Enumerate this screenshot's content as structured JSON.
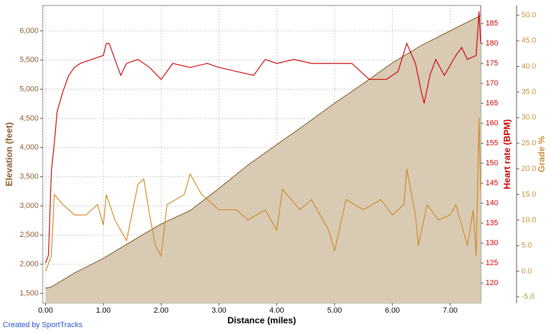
{
  "chart_data": {
    "type": "line",
    "xlabel": "Distance (miles)",
    "ylabel": "Elevation (feet)",
    "y2label": "Heart rate (BPM)",
    "y3label": "Grade %",
    "credit": "Created by SportTracks",
    "grid": true,
    "xlim": [
      -0.05,
      7.53
    ],
    "xticks": [
      {
        "value": 0,
        "label": "0.00"
      },
      {
        "value": 1,
        "label": "1.00"
      },
      {
        "value": 2,
        "label": "2.00"
      },
      {
        "value": 3,
        "label": "3.00"
      },
      {
        "value": 4,
        "label": "4.00"
      },
      {
        "value": 5,
        "label": "5.00"
      },
      {
        "value": 6,
        "label": "6.00"
      },
      {
        "value": 7,
        "label": "7.00"
      }
    ],
    "ylim": [
      1335,
      6435
    ],
    "yticks": [
      {
        "value": 1500,
        "label": "1,500"
      },
      {
        "value": 2000,
        "label": "2,000"
      },
      {
        "value": 2500,
        "label": "2,500"
      },
      {
        "value": 3000,
        "label": "3,000"
      },
      {
        "value": 3500,
        "label": "3,500"
      },
      {
        "value": 4000,
        "label": "4,000"
      },
      {
        "value": 4500,
        "label": "4,500"
      },
      {
        "value": 5000,
        "label": "5,000"
      },
      {
        "value": 5500,
        "label": "5,500"
      },
      {
        "value": 6000,
        "label": "6,000"
      }
    ],
    "y2lim": [
      115,
      189.5
    ],
    "y2ticks": [
      120,
      125,
      130,
      135,
      140,
      145,
      150,
      155,
      160,
      165,
      170,
      175,
      180,
      185
    ],
    "y3lim": [
      -6.2,
      51.9
    ],
    "y3ticks": [
      {
        "value": -5,
        "label": "-5.0"
      },
      {
        "value": 0,
        "label": "0.0"
      },
      {
        "value": 5,
        "label": "5.0"
      },
      {
        "value": 10,
        "label": "10.0"
      },
      {
        "value": 15,
        "label": "15.0"
      },
      {
        "value": 20,
        "label": "20.0"
      },
      {
        "value": 25,
        "label": "25.0"
      },
      {
        "value": 30,
        "label": "30.0"
      },
      {
        "value": 35,
        "label": "35.0"
      },
      {
        "value": 40,
        "label": "40.0"
      },
      {
        "value": 45,
        "label": "45.0"
      },
      {
        "value": 50,
        "label": "50.0"
      }
    ],
    "series": [
      {
        "axis": "y",
        "area": true,
        "color": "#8b6a3a",
        "fill": "#d9cab4",
        "x": [
          0,
          0.05,
          0.1,
          0.5,
          1.0,
          1.5,
          2.0,
          2.5,
          3.0,
          3.5,
          4.0,
          4.5,
          5.0,
          5.5,
          6.0,
          6.5,
          7.0,
          7.5,
          7.53
        ],
        "values": [
          1590,
          1600,
          1610,
          1850,
          2100,
          2400,
          2690,
          2920,
          3300,
          3700,
          4050,
          4400,
          4760,
          5100,
          5450,
          5750,
          6000,
          6250,
          6260
        ]
      },
      {
        "axis": "y2",
        "color": "#cc0000",
        "x": [
          0,
          0.05,
          0.1,
          0.15,
          0.2,
          0.3,
          0.4,
          0.5,
          0.6,
          0.8,
          1.0,
          1.05,
          1.1,
          1.2,
          1.3,
          1.4,
          1.6,
          1.8,
          2.0,
          2.2,
          2.5,
          2.8,
          3.0,
          3.3,
          3.6,
          3.8,
          4.0,
          4.3,
          4.6,
          5.0,
          5.3,
          5.6,
          5.9,
          6.1,
          6.25,
          6.4,
          6.5,
          6.55,
          6.65,
          6.75,
          6.9,
          7.1,
          7.2,
          7.3,
          7.45,
          7.5,
          7.53
        ],
        "values": [
          125,
          127,
          148,
          155,
          163,
          168,
          172,
          174,
          175,
          176,
          177,
          180,
          180,
          176,
          172,
          175,
          176,
          174,
          171,
          175,
          174,
          175,
          174,
          173,
          172,
          176,
          175,
          176,
          175,
          175,
          175,
          171,
          171,
          173,
          180,
          175,
          168,
          165,
          172,
          176,
          172,
          177,
          179,
          176,
          177,
          188,
          180
        ]
      },
      {
        "axis": "y3",
        "color": "#d08a20",
        "x": [
          0,
          0.1,
          0.15,
          0.3,
          0.5,
          0.7,
          0.9,
          1.0,
          1.05,
          1.2,
          1.4,
          1.6,
          1.7,
          1.8,
          1.9,
          2.0,
          2.1,
          2.4,
          2.5,
          2.7,
          3.0,
          3.3,
          3.5,
          3.8,
          4.0,
          4.1,
          4.4,
          4.6,
          4.9,
          5.0,
          5.2,
          5.5,
          5.8,
          6.0,
          6.2,
          6.25,
          6.4,
          6.45,
          6.6,
          6.8,
          7.0,
          7.1,
          7.2,
          7.3,
          7.4,
          7.45,
          7.5,
          7.53
        ],
        "values": [
          0,
          3,
          15,
          13,
          11,
          11,
          13,
          9,
          15,
          10,
          6,
          17,
          18,
          11,
          5,
          3,
          13,
          15,
          19,
          15,
          12,
          12,
          10,
          12,
          8,
          16,
          12,
          14,
          8,
          4,
          14,
          12,
          14,
          11,
          13,
          20,
          11,
          5,
          13,
          10,
          11,
          13,
          9,
          5,
          12,
          3,
          30,
          15
        ]
      }
    ]
  }
}
